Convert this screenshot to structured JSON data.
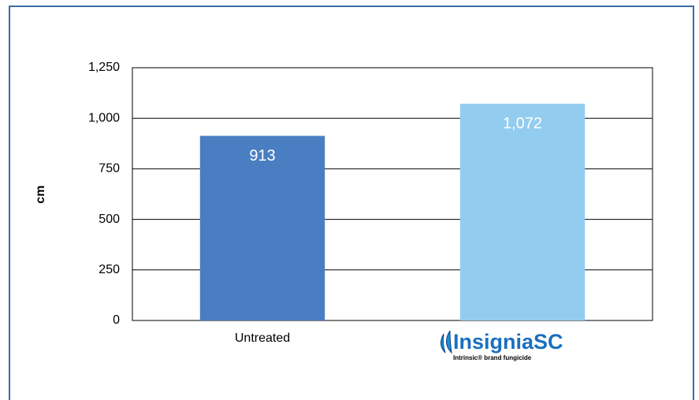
{
  "chart_data": {
    "type": "bar",
    "y_axis_label": "cm",
    "categories": [
      "Untreated",
      "InsigniaSC"
    ],
    "logo_tagline": "Intrinsic® brand fungicide",
    "values": [
      913,
      1072
    ],
    "value_labels": [
      "913",
      "1,072"
    ],
    "colors": [
      "#4a7ec2",
      "#92cdef"
    ],
    "ylim": [
      0,
      1250
    ],
    "yticks": [
      0,
      250,
      500,
      750,
      {
        "value": 1000,
        "label": "1,000"
      },
      {
        "value": 1250,
        "label": "1,250"
      }
    ],
    "grid": true
  }
}
